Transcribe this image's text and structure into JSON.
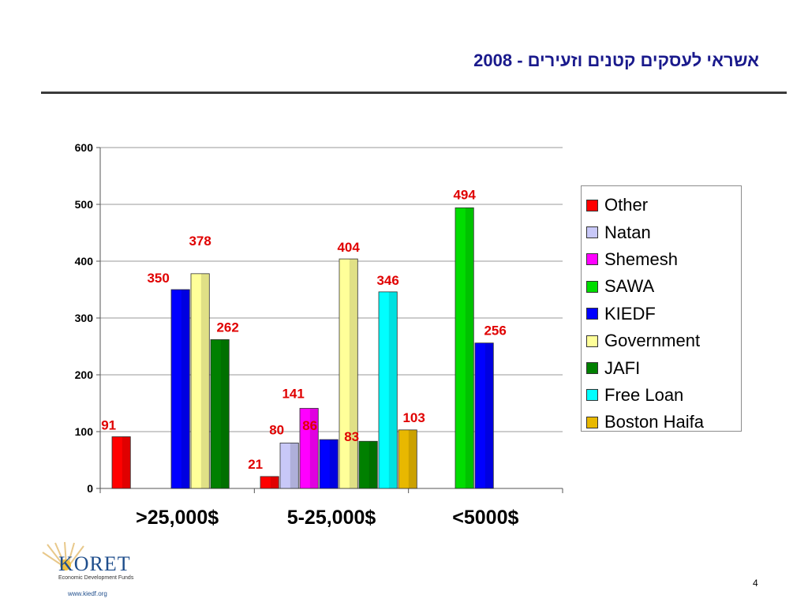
{
  "slide": {
    "title": "אשראי לעסקים קטנים וזעירים - 2008",
    "page_number": "4"
  },
  "logo": {
    "name": "KORET",
    "subtitle": "Economic Development Funds",
    "url": "www.kiedf.org"
  },
  "chart_data": {
    "type": "bar",
    "title": "",
    "xlabel": "",
    "ylabel": "",
    "ylim": [
      0,
      600
    ],
    "yticks": [
      0,
      100,
      200,
      300,
      400,
      500,
      600
    ],
    "grid": true,
    "legend_position": "right",
    "categories": [
      ">25,000$",
      "5-25,000$",
      "<5000$"
    ],
    "series": [
      {
        "name": "Other",
        "color": "#ff0000",
        "values": [
          91,
          21,
          null
        ]
      },
      {
        "name": "Natan",
        "color": "#c8c8f8",
        "values": [
          null,
          80,
          null
        ]
      },
      {
        "name": "Shemesh",
        "color": "#ff00ff",
        "values": [
          null,
          141,
          null
        ]
      },
      {
        "name": "SAWA",
        "color": "#00dd00",
        "values": [
          null,
          null,
          494
        ]
      },
      {
        "name": "KIEDF",
        "color": "#0000ff",
        "values": [
          350,
          86,
          256
        ]
      },
      {
        "name": "Government",
        "color": "#ffff99",
        "values": [
          378,
          404,
          null
        ]
      },
      {
        "name": "JAFI",
        "color": "#008000",
        "values": [
          262,
          83,
          null
        ]
      },
      {
        "name": "Free Loan",
        "color": "#00ffff",
        "values": [
          null,
          346,
          null
        ]
      },
      {
        "name": "Boston Haifa",
        "color": "#e8b800",
        "values": [
          null,
          103,
          null
        ]
      }
    ],
    "value_label_color": "#e00000"
  }
}
